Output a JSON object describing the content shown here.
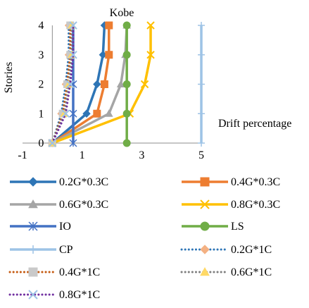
{
  "chart_data": {
    "type": "line",
    "title": "Kobe",
    "xlabel": "Drift percentage",
    "ylabel": "Stories",
    "xlim": [
      -1,
      5
    ],
    "ylim": [
      0,
      4
    ],
    "x_ticks": [
      "-1",
      "1",
      "3",
      "5"
    ],
    "x_tick_values": [
      -1,
      1,
      3,
      5
    ],
    "y_ticks": [
      "0",
      "1",
      "2",
      "3",
      "4"
    ],
    "y_tick_values": [
      0,
      1,
      2,
      3,
      4
    ],
    "grid": false,
    "legend_position": "bottom",
    "series": [
      {
        "name": "0.2G*0.3C",
        "color": "#2e75b6",
        "marker": "diamond",
        "dash": "solid",
        "points": [
          [
            0,
            0
          ],
          [
            1.15,
            1
          ],
          [
            1.5,
            2
          ],
          [
            1.7,
            3
          ],
          [
            1.75,
            4
          ]
        ]
      },
      {
        "name": "0.4G*0.3C",
        "color": "#ed7d31",
        "marker": "square",
        "dash": "solid",
        "points": [
          [
            0,
            0
          ],
          [
            1.5,
            1
          ],
          [
            1.75,
            2
          ],
          [
            1.9,
            3
          ],
          [
            1.9,
            4
          ]
        ]
      },
      {
        "name": "0.6G*0.3C",
        "color": "#a5a5a5",
        "marker": "triangle",
        "dash": "solid",
        "points": [
          [
            0,
            0
          ],
          [
            1.9,
            1
          ],
          [
            2.3,
            2
          ],
          [
            2.45,
            3
          ],
          [
            2.5,
            4
          ]
        ]
      },
      {
        "name": "0.8G*0.3C",
        "color": "#ffc000",
        "marker": "x",
        "dash": "solid",
        "points": [
          [
            0,
            0
          ],
          [
            2.6,
            1
          ],
          [
            3.1,
            2
          ],
          [
            3.3,
            3
          ],
          [
            3.3,
            4
          ]
        ]
      },
      {
        "name": "IO",
        "color": "#4472c4",
        "marker": "star",
        "dash": "solid",
        "points": [
          [
            0.7,
            0
          ],
          [
            0.7,
            1
          ],
          [
            0.7,
            2
          ],
          [
            0.7,
            3
          ],
          [
            0.7,
            4
          ]
        ]
      },
      {
        "name": "LS",
        "color": "#70ad47",
        "marker": "circle",
        "dash": "solid",
        "points": [
          [
            2.5,
            0
          ],
          [
            2.5,
            1
          ],
          [
            2.5,
            2
          ],
          [
            2.5,
            3
          ],
          [
            2.5,
            4
          ]
        ]
      },
      {
        "name": "CP",
        "color": "#9dc3e6",
        "marker": "plus",
        "dash": "solid",
        "points": [
          [
            5,
            0
          ],
          [
            5,
            1
          ],
          [
            5,
            2
          ],
          [
            5,
            3
          ],
          [
            5,
            4
          ]
        ]
      },
      {
        "name": "0.2G*1C",
        "color": "#f4b183",
        "marker": "diamond",
        "dash": "dot",
        "line_color": "#2e75b6",
        "points": [
          [
            0,
            0
          ],
          [
            0.3,
            1
          ],
          [
            0.45,
            2
          ],
          [
            0.55,
            3
          ],
          [
            0.55,
            4
          ]
        ]
      },
      {
        "name": "0.4G*1C",
        "color": "#c9c9c9",
        "marker": "square",
        "dash": "dot",
        "line_color": "#c55a11",
        "points": [
          [
            0,
            0
          ],
          [
            0.35,
            1
          ],
          [
            0.5,
            2
          ],
          [
            0.6,
            3
          ],
          [
            0.6,
            4
          ]
        ]
      },
      {
        "name": "0.6G*1C",
        "color": "#ffd966",
        "marker": "triangle",
        "dash": "dot",
        "line_color": "#7f7f7f",
        "points": [
          [
            0,
            0
          ],
          [
            0.4,
            1
          ],
          [
            0.55,
            2
          ],
          [
            0.65,
            3
          ],
          [
            0.65,
            4
          ]
        ]
      },
      {
        "name": "0.8G*1C",
        "color": "#9dc3e6",
        "marker": "x",
        "dash": "dot",
        "line_color": "#7030a0",
        "points": [
          [
            0,
            0
          ],
          [
            0.45,
            1
          ],
          [
            0.6,
            2
          ],
          [
            0.7,
            3
          ],
          [
            0.7,
            4
          ]
        ]
      }
    ]
  }
}
